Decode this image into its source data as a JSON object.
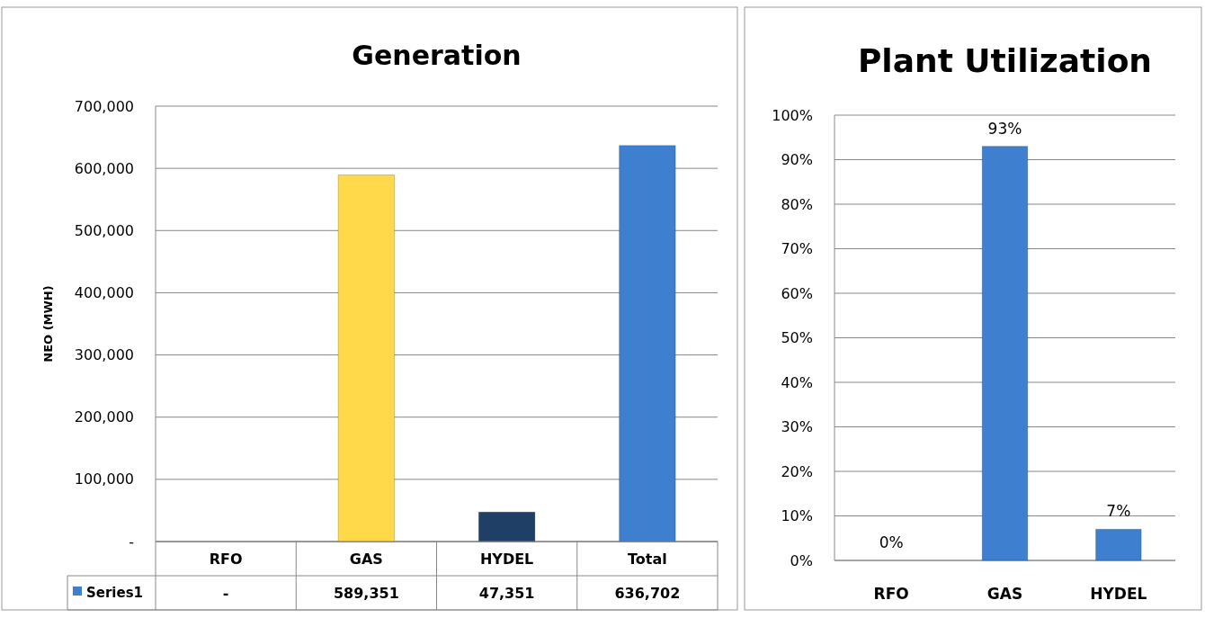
{
  "chart_data": [
    {
      "type": "bar",
      "title": "Generation",
      "ylabel": "NEO (MWH)",
      "categories": [
        "RFO",
        "GAS",
        "HYDEL",
        "Total"
      ],
      "series": [
        {
          "name": "Series1",
          "color": "#3f7fcf",
          "colors": [
            "#3f7fcf",
            "#ffd94a",
            "#203f66",
            "#3f7fcf"
          ],
          "values": [
            0,
            589351,
            47351,
            636702
          ],
          "value_labels": [
            "-",
            "589,351",
            "47,351",
            "636,702"
          ]
        }
      ],
      "ylim": [
        0,
        700000
      ],
      "yticks": [
        {
          "value": 0,
          "label": "-"
        },
        {
          "value": 100000,
          "label": "100,000"
        },
        {
          "value": 200000,
          "label": "200,000"
        },
        {
          "value": 300000,
          "label": "300,000"
        },
        {
          "value": 400000,
          "label": "400,000"
        },
        {
          "value": 500000,
          "label": "500,000"
        },
        {
          "value": 600000,
          "label": "600,000"
        },
        {
          "value": 700000,
          "label": "700,000"
        }
      ],
      "grid": "y",
      "legend": "bottom"
    },
    {
      "type": "bar",
      "title": "Plant Utilization",
      "categories": [
        "RFO",
        "GAS",
        "HYDEL"
      ],
      "series": [
        {
          "color": "#3f7fcf",
          "values": [
            0,
            93,
            7
          ],
          "value_labels": [
            "0%",
            "93%",
            "7%"
          ]
        }
      ],
      "ylim": [
        0,
        100
      ],
      "yticks": [
        {
          "value": 0,
          "label": "0%"
        },
        {
          "value": 10,
          "label": "10%"
        },
        {
          "value": 20,
          "label": "20%"
        },
        {
          "value": 30,
          "label": "30%"
        },
        {
          "value": 40,
          "label": "40%"
        },
        {
          "value": 50,
          "label": "50%"
        },
        {
          "value": 60,
          "label": "60%"
        },
        {
          "value": 70,
          "label": "70%"
        },
        {
          "value": 80,
          "label": "80%"
        },
        {
          "value": 90,
          "label": "90%"
        },
        {
          "value": 100,
          "label": "100%"
        }
      ],
      "grid": "y"
    }
  ]
}
